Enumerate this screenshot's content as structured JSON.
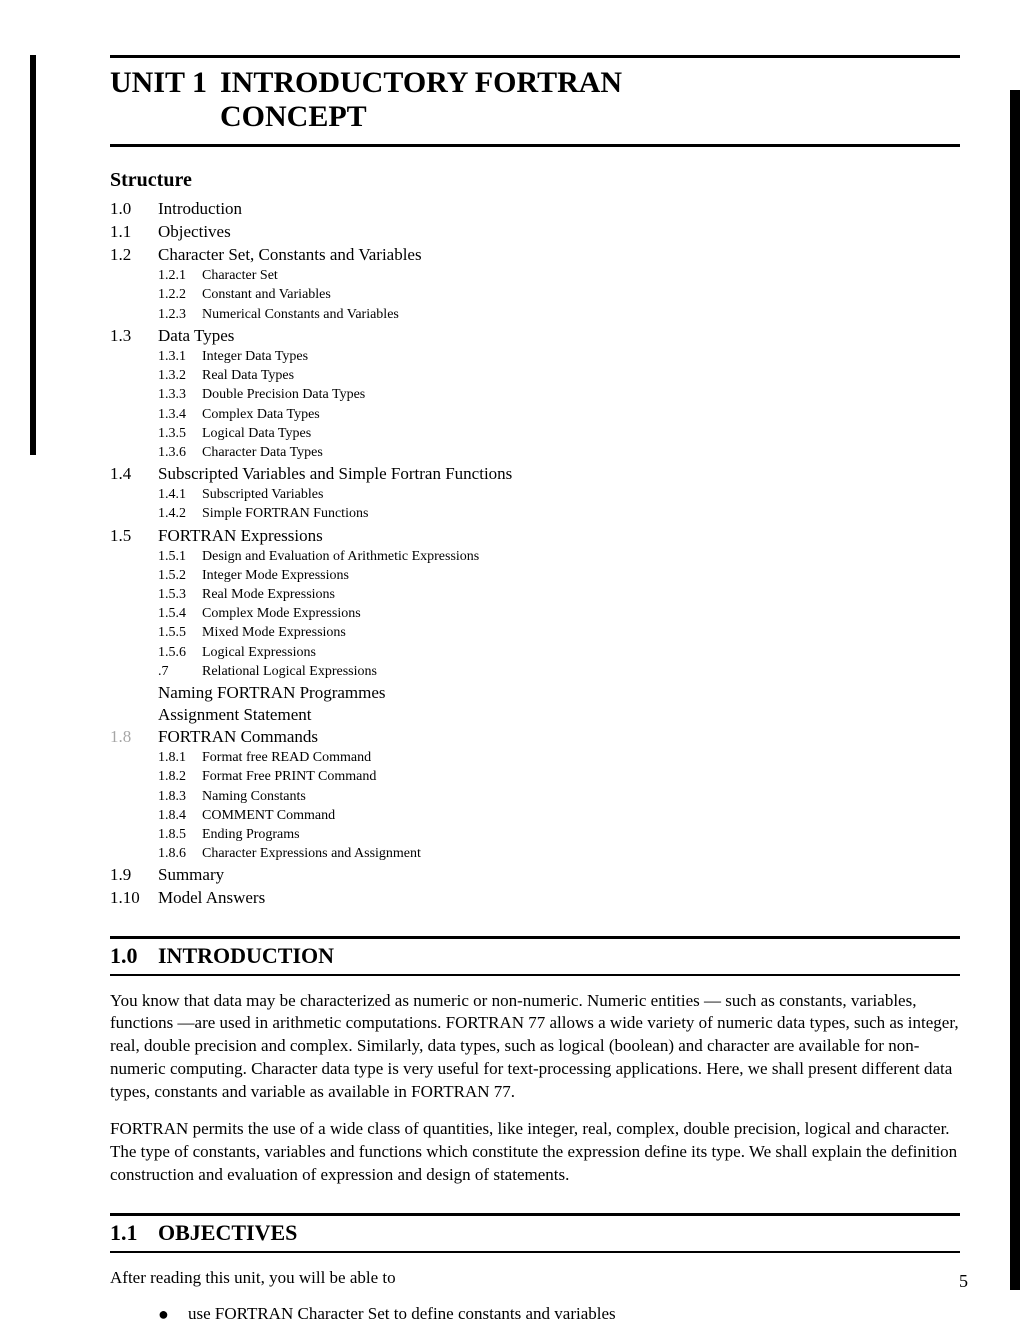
{
  "unit": {
    "number": "UNIT 1",
    "title_line1": "INTRODUCTORY FORTRAN",
    "title_line2": "CONCEPT"
  },
  "structure_heading": "Structure",
  "toc": [
    {
      "num": "1.0",
      "label": "Introduction"
    },
    {
      "num": "1.1",
      "label": "Objectives"
    },
    {
      "num": "1.2",
      "label": "Character Set, Constants and Variables",
      "sub": [
        {
          "num": "1.2.1",
          "label": "Character Set"
        },
        {
          "num": "1.2.2",
          "label": "Constant and Variables"
        },
        {
          "num": "1.2.3",
          "label": "Numerical Constants and Variables"
        }
      ]
    },
    {
      "num": "1.3",
      "label": "Data Types",
      "sub": [
        {
          "num": "1.3.1",
          "label": "Integer Data Types"
        },
        {
          "num": "1.3.2",
          "label": "Real Data Types"
        },
        {
          "num": "1.3.3",
          "label": "Double Precision Data Types"
        },
        {
          "num": "1.3.4",
          "label": "Complex Data Types"
        },
        {
          "num": "1.3.5",
          "label": "Logical Data Types"
        },
        {
          "num": "1.3.6",
          "label": "Character Data Types"
        }
      ]
    },
    {
      "num": "1.4",
      "label": "Subscripted Variables and Simple Fortran Functions",
      "sub": [
        {
          "num": "1.4.1",
          "label": "Subscripted Variables"
        },
        {
          "num": "1.4.2",
          "label": "Simple FORTRAN Functions"
        }
      ]
    },
    {
      "num": "1.5",
      "label": "FORTRAN Expressions",
      "sub": [
        {
          "num": "1.5.1",
          "label": "Design and Evaluation of Arithmetic Expressions"
        },
        {
          "num": "1.5.2",
          "label": "Integer Mode Expressions"
        },
        {
          "num": "1.5.3",
          "label": "Real Mode Expressions"
        },
        {
          "num": "1.5.4",
          "label": "Complex Mode Expressions"
        },
        {
          "num": "1.5.5",
          "label": "Mixed Mode Expressions"
        },
        {
          "num": "1.5.6",
          "label": "Logical Expressions"
        },
        {
          "num": ".7",
          "label": "Relational Logical Expressions"
        }
      ]
    },
    {
      "num": "",
      "label": "Naming FORTRAN Programmes",
      "plain": true
    },
    {
      "num": "",
      "label": "Assignment Statement",
      "plain": true
    },
    {
      "num": "1.8",
      "label": "FORTRAN Commands",
      "obscured_num": true,
      "sub": [
        {
          "num": "1.8.1",
          "label": "Format free READ Command"
        },
        {
          "num": "1.8.2",
          "label": "Format Free PRINT Command"
        },
        {
          "num": "1.8.3",
          "label": "Naming Constants"
        },
        {
          "num": "1.8.4",
          "label": "COMMENT Command"
        },
        {
          "num": "1.8.5",
          "label": "Ending Programs"
        },
        {
          "num": "1.8.6",
          "label": "Character Expressions and Assignment"
        }
      ]
    },
    {
      "num": "1.9",
      "label": "Summary"
    },
    {
      "num": "1.10",
      "label": "Model Answers"
    }
  ],
  "sections": {
    "intro": {
      "num": "1.0",
      "title": "INTRODUCTION",
      "para1": "You know that data may be characterized as numeric or non-numeric. Numeric entities — such as constants, variables, functions —are used in arithmetic computations. FORTRAN 77 allows a wide variety of numeric data types, such as integer, real, double precision and complex. Similarly, data types, such as logical (boolean) and character are available for non-numeric computing. Character data type is very useful for text-processing applications. Here, we shall present different data types, constants and variable as available in FORTRAN 77.",
      "para2": "FORTRAN permits the use of a wide class of quantities, like integer, real, complex, double precision, logical and character. The type of constants, variables and functions which constitute the expression define its type. We shall explain the definition construction and evaluation of expression and design of statements."
    },
    "objectives": {
      "num": "1.1",
      "title": "OBJECTIVES",
      "lead": "After reading this unit, you will be able to",
      "bullets": [
        "use FORTRAN Character Set to define constants and variables"
      ]
    }
  },
  "page_number": "5",
  "colors": {
    "text": "#000000",
    "background": "#ffffff",
    "rule": "#000000"
  },
  "typography": {
    "title_fontsize": 30,
    "heading_fontsize": 22,
    "body_fontsize": 17,
    "sub_fontsize": 14,
    "font_family": "Georgia, Times New Roman, serif"
  }
}
